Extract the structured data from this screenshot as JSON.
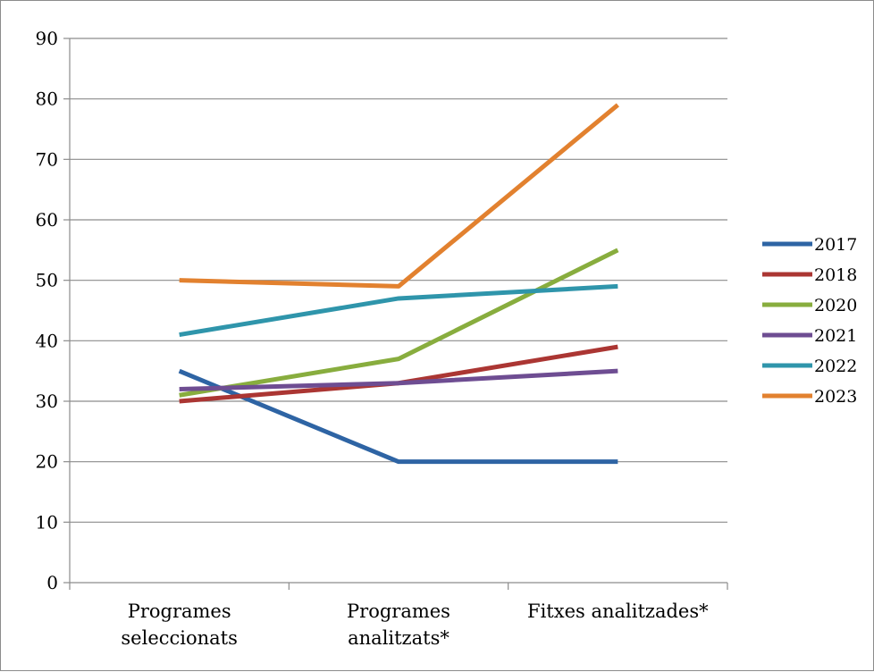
{
  "chart_data": {
    "type": "line",
    "title": "",
    "xlabel": "",
    "ylabel": "",
    "categories": [
      [
        "Programes",
        "seleccionats"
      ],
      [
        "Programes",
        "analitzats*"
      ],
      [
        "Fitxes analitzades*"
      ]
    ],
    "y_ticks": [
      "0",
      "10",
      "20",
      "30",
      "40",
      "50",
      "60",
      "70",
      "80",
      "90"
    ],
    "ylim": [
      0,
      90
    ],
    "grid": true,
    "legend_position": "right",
    "series": [
      {
        "name": "2017",
        "color": "#2e64a4",
        "values": [
          35,
          20,
          20
        ]
      },
      {
        "name": "2018",
        "color": "#ab3633",
        "values": [
          30,
          33,
          39
        ]
      },
      {
        "name": "2020",
        "color": "#88ad3e",
        "values": [
          31,
          37,
          55
        ]
      },
      {
        "name": "2021",
        "color": "#6e4d92",
        "values": [
          32,
          33,
          35
        ]
      },
      {
        "name": "2022",
        "color": "#2f95ab",
        "values": [
          41,
          47,
          49
        ]
      },
      {
        "name": "2023",
        "color": "#e2812f",
        "values": [
          50,
          49,
          79
        ]
      }
    ]
  }
}
